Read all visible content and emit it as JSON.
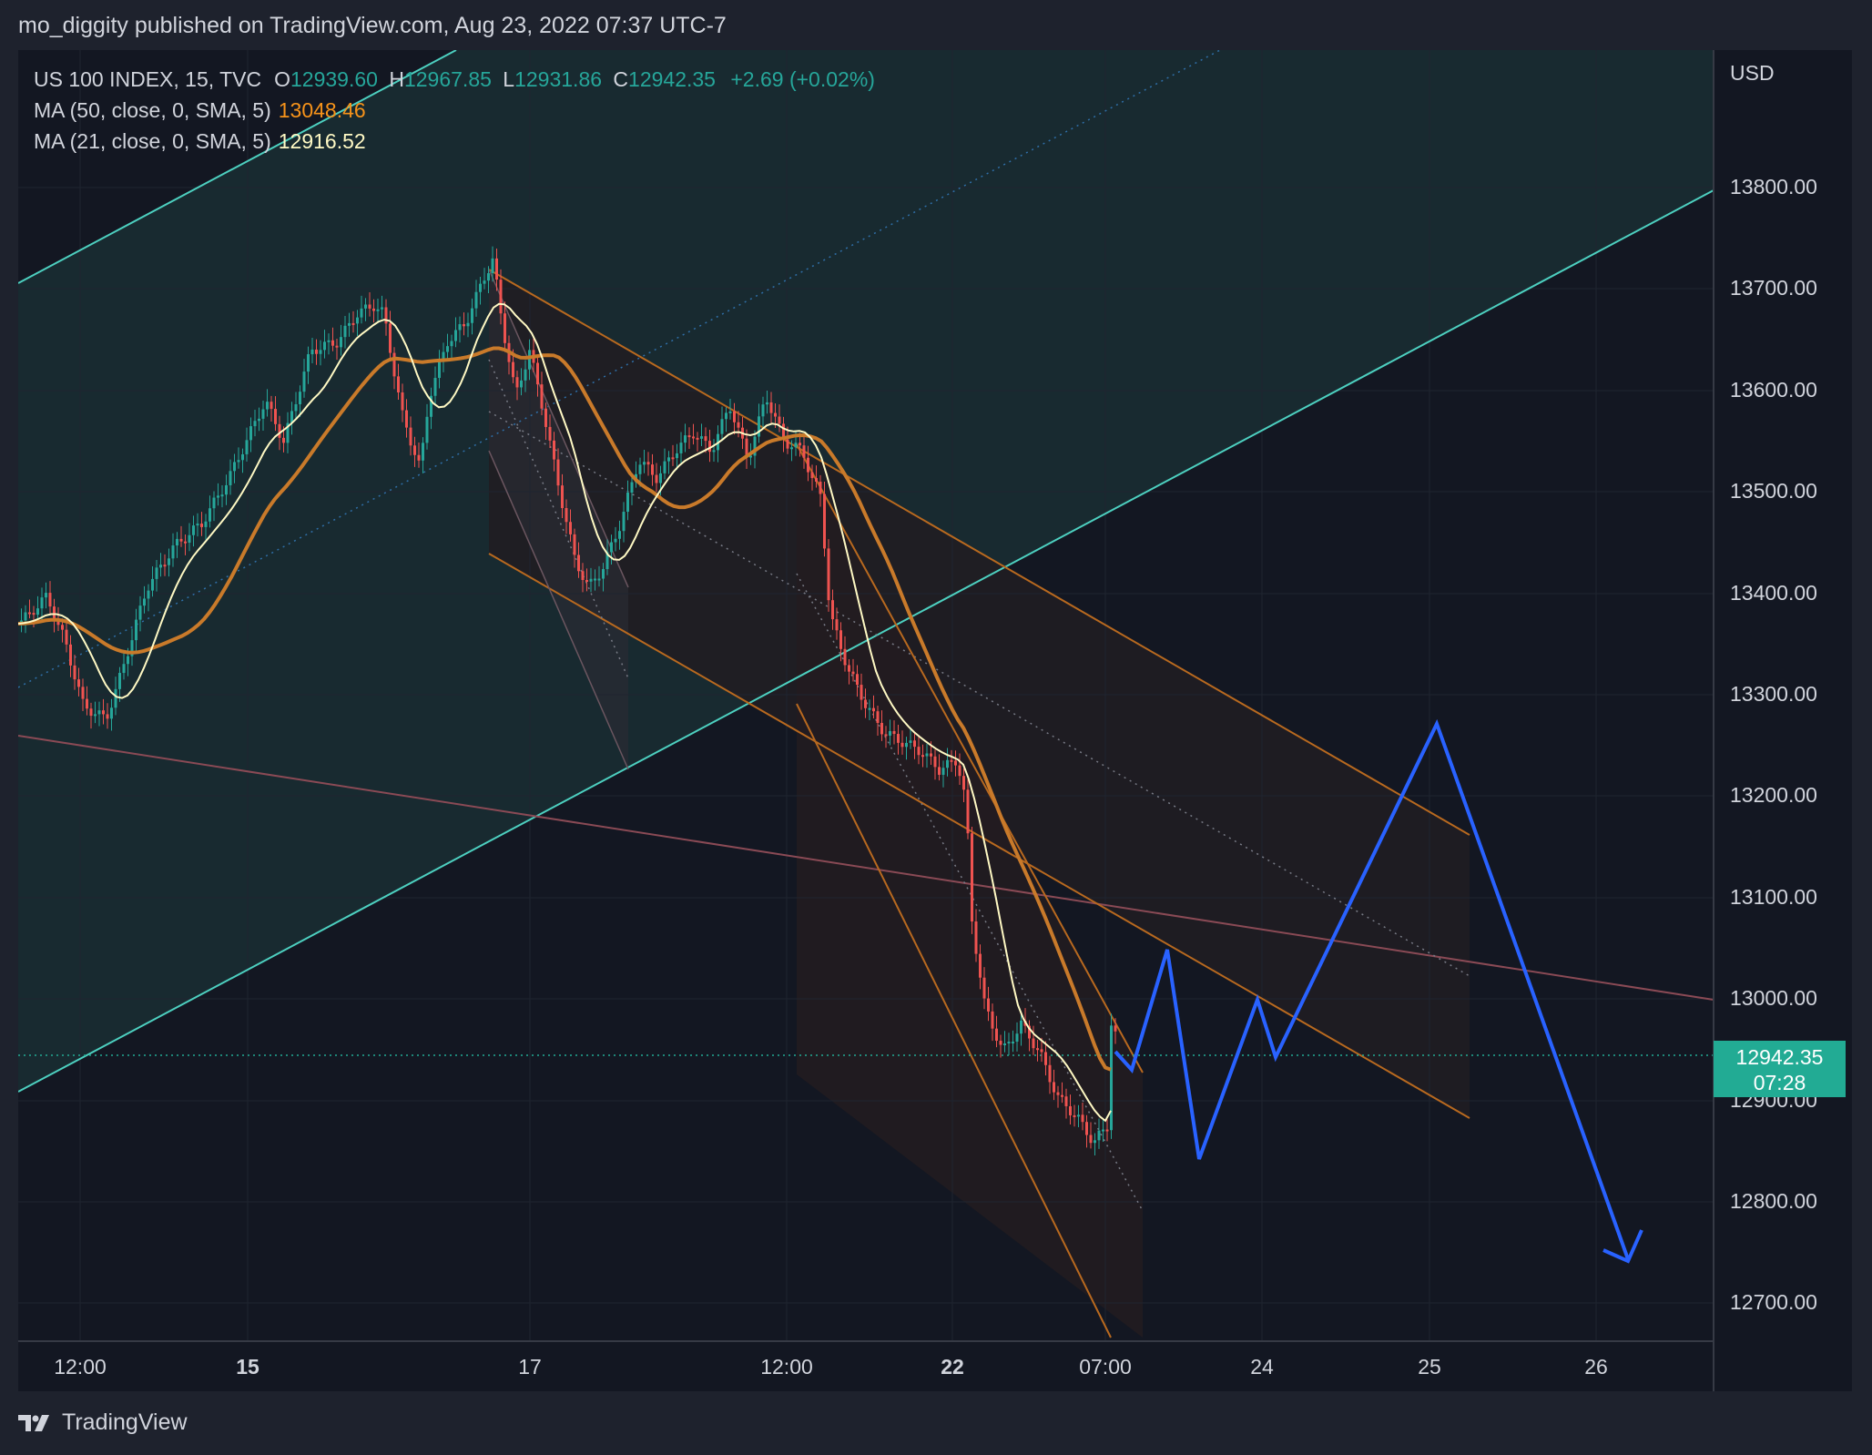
{
  "header": {
    "published_text": "mo_diggity published on TradingView.com, Aug 23, 2022 07:37 UTC-7"
  },
  "legend": {
    "symbol": "US 100 INDEX, 15, TVC",
    "open_label": "O",
    "open": "12939.60",
    "high_label": "H",
    "high": "12967.85",
    "low_label": "L",
    "low": "12931.86",
    "close_label": "C",
    "close": "12942.35",
    "change": "+2.69 (+0.02%)",
    "ma50_label": "MA (50, close, 0, SMA, 5)",
    "ma50_value": "13048.46",
    "ma21_label": "MA (21, close, 0, SMA, 5)",
    "ma21_value": "12916.52"
  },
  "price_axis": {
    "currency": "USD",
    "ticks": [
      "13800.00",
      "13700.00",
      "13600.00",
      "13500.00",
      "13400.00",
      "13300.00",
      "13200.00",
      "13100.00",
      "13000.00",
      "12900.00",
      "12800.00",
      "12700.00"
    ],
    "current_price": "12942.35",
    "countdown": "07:28"
  },
  "time_axis": {
    "labels": [
      {
        "text": "12:00",
        "bold": false
      },
      {
        "text": "15",
        "bold": true
      },
      {
        "text": "17",
        "bold": false
      },
      {
        "text": "12:00",
        "bold": false
      },
      {
        "text": "22",
        "bold": true
      },
      {
        "text": "07:00",
        "bold": false
      },
      {
        "text": "24",
        "bold": false
      },
      {
        "text": "25",
        "bold": false
      },
      {
        "text": "26",
        "bold": false
      }
    ]
  },
  "colors": {
    "up": "#26a69a",
    "down": "#ef5350",
    "ma50": "#f7931a",
    "ma21": "#fff9c4",
    "projection": "#2962ff",
    "channel": "#4dd0c0",
    "down_channel": "#b8691f"
  },
  "brand": {
    "name": "TradingView"
  }
}
